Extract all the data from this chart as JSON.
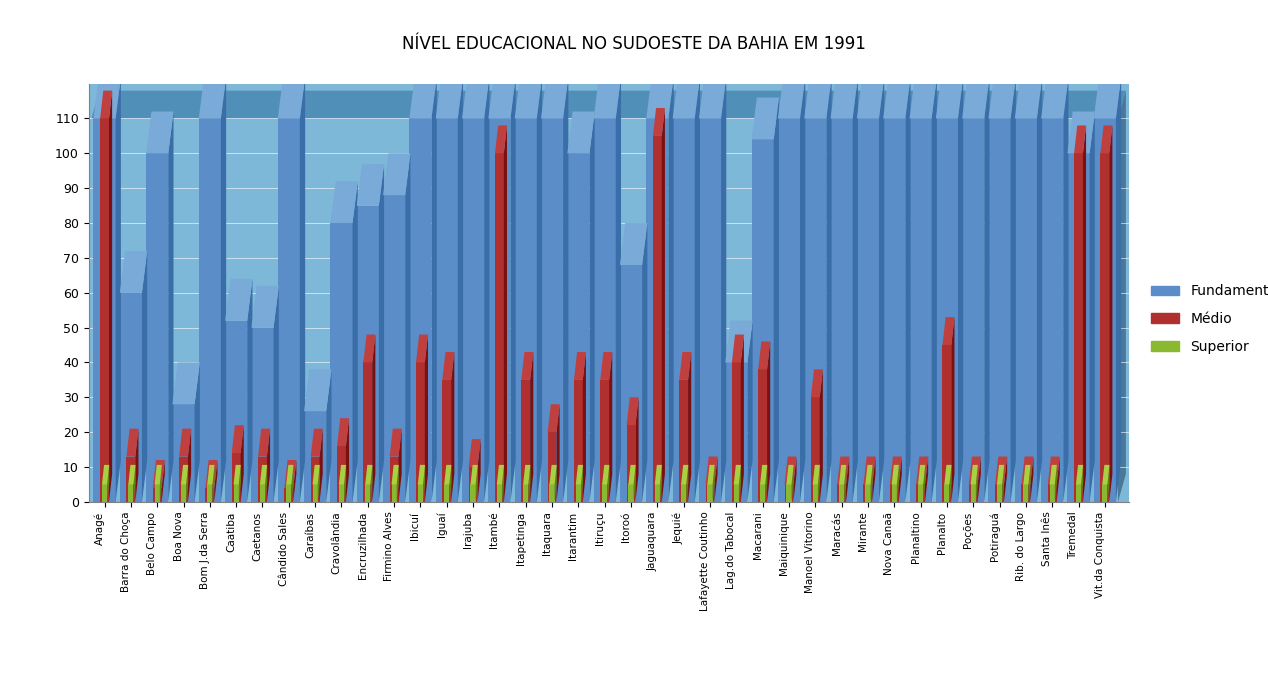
{
  "title": "NÍVEL EDUCACIONAL NO SUDOESTE DA BAHIA EM 1991",
  "categories": [
    "Anagé",
    "Barra do Choça",
    "Belo Campo",
    "Boa Nova",
    "Bom J.da Serra",
    "Caatiba",
    "Caetanos",
    "Cândido Sales",
    "Caraíbas",
    "Cravolândia",
    "Encruzilhada",
    "Firmino Alves",
    "Ibicuí",
    "Iguaí",
    "Irajuba",
    "Itambé",
    "Itapetinga",
    "Itaquara",
    "Itarantim",
    "Itiruçu",
    "Itoroó",
    "Jaguaquara",
    "Jequié",
    "Lafayette Coutinho",
    "Lag.do Tabocal",
    "Macarani",
    "Maiquinique",
    "Manoel Vitorino",
    "Maracás",
    "Mirante",
    "Nova Canaã",
    "Planaltino",
    "Planalto",
    "Poções",
    "Potiraguá",
    "Rib. do Largo",
    "Santa Inês",
    "Tremedal",
    "Vit.da Conquista"
  ],
  "fundamental": [
    110,
    60,
    100,
    28,
    110,
    52,
    50,
    110,
    26,
    80,
    85,
    88,
    110,
    110,
    110,
    110,
    110,
    110,
    100,
    110,
    68,
    110,
    110,
    110,
    40,
    104,
    110,
    110,
    110,
    110,
    110,
    110,
    110,
    110,
    110,
    110,
    110,
    100,
    110
  ],
  "medio": [
    110,
    13,
    4,
    13,
    4,
    14,
    13,
    4,
    13,
    16,
    40,
    13,
    40,
    35,
    10,
    100,
    35,
    20,
    35,
    35,
    22,
    105,
    35,
    5,
    40,
    38,
    5,
    30,
    5,
    5,
    5,
    5,
    45,
    5,
    5,
    5,
    5,
    100,
    100
  ],
  "superior": [
    5,
    5,
    5,
    5,
    5,
    5,
    5,
    5,
    5,
    5,
    5,
    5,
    5,
    5,
    5,
    5,
    5,
    5,
    5,
    5,
    5,
    5,
    5,
    5,
    5,
    5,
    5,
    5,
    5,
    5,
    5,
    5,
    5,
    5,
    5,
    5,
    5,
    5,
    5
  ],
  "color_fundamental": "#5B8DC8",
  "color_fundamental_side": "#3A6EA8",
  "color_fundamental_top": "#7AAAD8",
  "color_medio": "#B03030",
  "color_medio_side": "#7A1010",
  "color_medio_top": "#C04040",
  "color_superior": "#8AB830",
  "color_superior_side": "#5A8810",
  "color_superior_top": "#A8D040",
  "color_bg": "#7EB8D8",
  "color_bg_top": "#5090B8",
  "ylim": [
    0,
    110
  ],
  "yticks": [
    0,
    10,
    20,
    30,
    40,
    50,
    60,
    70,
    80,
    90,
    100,
    110
  ],
  "legend_labels": [
    "Fundamental",
    "Médio",
    "Superior"
  ]
}
